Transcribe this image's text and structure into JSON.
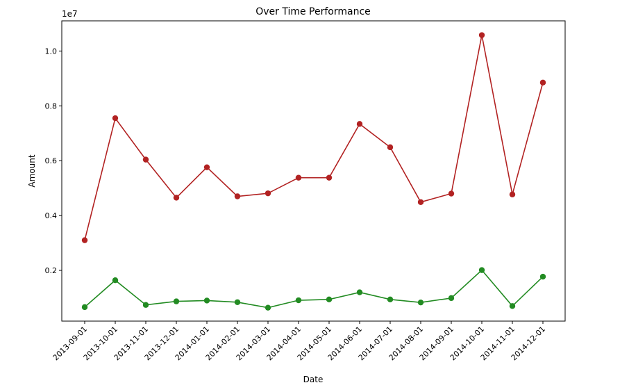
{
  "chart_data": {
    "type": "line",
    "title": "Over Time Performance",
    "xlabel": "Date",
    "ylabel": "Amount",
    "y_multiplier_label": "1e7",
    "ylim": [
      150000,
      11100000
    ],
    "yticks": [
      2000000,
      4000000,
      6000000,
      8000000,
      10000000
    ],
    "ytick_labels": [
      "0.2",
      "0.4",
      "0.6",
      "0.8",
      "1.0"
    ],
    "categories": [
      "2013-09-01",
      "2013-10-01",
      "2013-11-01",
      "2013-12-01",
      "2014-01-01",
      "2014-02-01",
      "2014-03-01",
      "2014-04-01",
      "2014-05-01",
      "2014-06-01",
      "2014-07-01",
      "2014-08-01",
      "2014-09-01",
      "2014-10-01",
      "2014-11-01",
      "2014-12-01"
    ],
    "grid": false,
    "series": [
      {
        "color": "#b22222",
        "marker": "circle",
        "values": [
          3100000,
          7550000,
          6040000,
          4650000,
          5760000,
          4700000,
          4810000,
          5380000,
          5380000,
          7340000,
          6490000,
          4490000,
          4800000,
          10580000,
          4770000,
          8850000
        ]
      },
      {
        "color": "#228b22",
        "marker": "circle",
        "values": [
          660000,
          1640000,
          740000,
          870000,
          900000,
          840000,
          640000,
          910000,
          940000,
          1200000,
          940000,
          830000,
          990000,
          2010000,
          700000,
          1770000
        ]
      }
    ]
  }
}
